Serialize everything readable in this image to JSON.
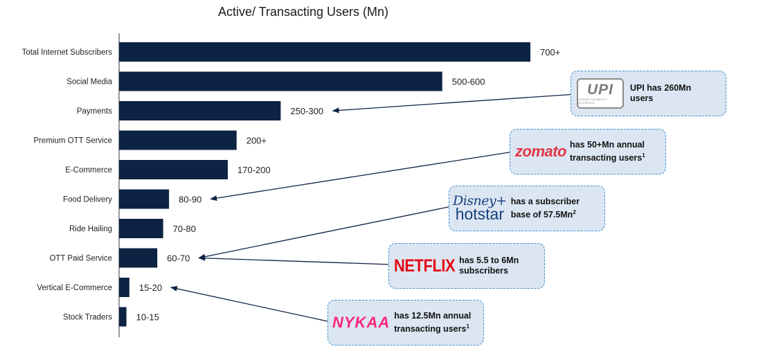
{
  "chart_data": {
    "type": "bar",
    "orientation": "horizontal",
    "title": "Active/ Transacting Users (Mn)",
    "categories": [
      "Total Internet Subscribers",
      "Social Media",
      "Payments",
      "Premium OTT Service",
      "E-Commerce",
      "Food Delivery",
      "Ride Hailing",
      "OTT Paid Service",
      "Vertical E-Commerce",
      "Stock Traders"
    ],
    "values": [
      700,
      550,
      275,
      200,
      185,
      85,
      75,
      65,
      17.5,
      12.5
    ],
    "value_labels": [
      "700+",
      "500-600",
      "250-300",
      "200+",
      "170-200",
      "80-90",
      "70-80",
      "60-70",
      "15-20",
      "10-15"
    ],
    "xlim": [
      0,
      740
    ],
    "bar_color": "#0d2344",
    "grid": false,
    "legend": "none"
  },
  "callouts": [
    {
      "logo": "UPI",
      "logo_sub": "UNIFIED PAYMENTS INTERFACE",
      "text_lines": [
        "UPI has 260Mn",
        "users"
      ],
      "points_to": "Payments"
    },
    {
      "logo": "zomato",
      "text_lines": [
        "has 50+Mn annual",
        "transacting users"
      ],
      "sup": "1",
      "points_to": "Food Delivery"
    },
    {
      "logo_line1": "Disney+",
      "logo_line2": "hotstar",
      "text_lines": [
        "has a subscriber",
        "base of 57.5Mn"
      ],
      "sup": "2",
      "points_to": "OTT Paid Service"
    },
    {
      "logo": "NETFLIX",
      "text_lines": [
        "has 5.5 to 6Mn",
        "subscribers"
      ],
      "points_to": "OTT Paid Service"
    },
    {
      "logo": "NYKAA",
      "text_lines": [
        "has 12.5Mn annual",
        "transacting users"
      ],
      "sup": "1",
      "points_to": "Vertical E-Commerce"
    }
  ],
  "colors": {
    "bar": "#0d2344",
    "callout_bg": "#dce6f3",
    "callout_border": "#3d93cc",
    "arrow": "#0d2344"
  }
}
